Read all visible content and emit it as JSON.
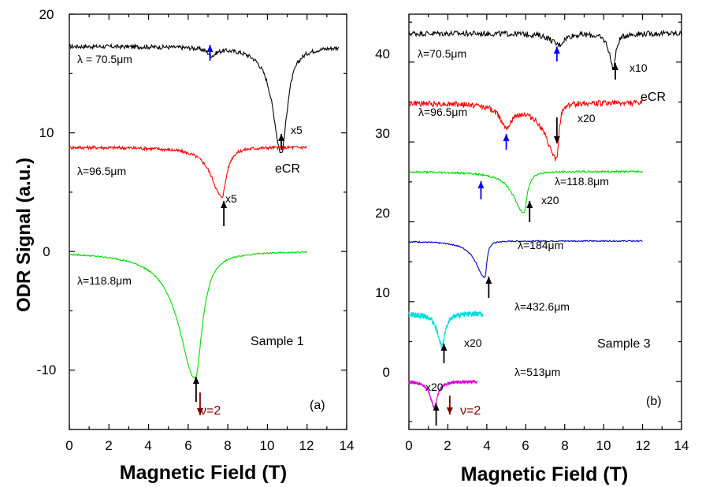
{
  "ylabel": "ODR Signal (a.u.)",
  "panel_a": {
    "label": "(a)",
    "xlabel": "Magnetic Field (T)",
    "sample": "Sample 1",
    "x_ticks": [
      "0",
      "2",
      "4",
      "6",
      "8",
      "10",
      "12",
      "14"
    ],
    "y_ticks": [
      "-10",
      "0",
      "10",
      "20"
    ],
    "annotations": {
      "l1": "λ = 70.5μm",
      "l2": "λ=96.5μm",
      "l3": "λ=118.8μm",
      "x5a": "x5",
      "x5b": "x5",
      "ecr": "eCR",
      "nu": "ν=2"
    }
  },
  "panel_b": {
    "label": "(b)",
    "xlabel": "Magnetic Field (T)",
    "sample": "Sample 3",
    "x_ticks": [
      "0",
      "2",
      "4",
      "6",
      "8",
      "10",
      "12",
      "14"
    ],
    "y_ticks": [
      "0",
      "10",
      "20",
      "30",
      "40"
    ],
    "annotations": {
      "l1": "λ=70.5μm",
      "l2": "λ=96.5μm",
      "l3": "λ=118.8μm",
      "l4": "λ=184μm",
      "l5": "λ=432.6μm",
      "l6": "λ=513μm",
      "x10": "x10",
      "x20a": "x20",
      "x20b": "x20",
      "x20c": "x20",
      "x20d": "x20",
      "ecr": "eCR",
      "nu": "ν=2"
    }
  },
  "chart_data": [
    {
      "type": "line",
      "panel": "(a)",
      "xlabel": "Magnetic Field (T)",
      "ylabel": "ODR Signal (a.u.)",
      "xlim": [
        0,
        14
      ],
      "ylim": [
        -15,
        20
      ],
      "series": [
        {
          "name": "λ = 70.5μm",
          "color": "#000000",
          "base": 17.3,
          "x_range": [
            0,
            13.6
          ],
          "dips": [
            {
              "x": 10.7,
              "depth": 9.0,
              "wl": 0.65,
              "wr": 0.45
            },
            {
              "x": 7.2,
              "depth": 0.6,
              "wl": 0.35,
              "wr": 0.35
            }
          ],
          "noise": 0.18
        },
        {
          "name": "λ=96.5μm",
          "color": "#ff0000",
          "base": 8.8,
          "x_range": [
            0,
            12
          ],
          "dips": [
            {
              "x": 7.7,
              "depth": 4.2,
              "wl": 0.8,
              "wr": 0.35
            }
          ],
          "noise": 0.14
        },
        {
          "name": "λ=118.8μm",
          "color": "#00dd00",
          "base": 0.0,
          "x_range": [
            0,
            12
          ],
          "dips": [
            {
              "x": 6.35,
              "depth": 10.7,
              "wl": 1.25,
              "wr": 0.55
            }
          ],
          "noise": 0.06
        }
      ],
      "arrows": [
        {
          "x": 10.7,
          "color": "#000000",
          "dir": "up"
        },
        {
          "x": 7.8,
          "color": "#000000",
          "dir": "up"
        },
        {
          "x": 6.4,
          "color": "#000000",
          "dir": "up"
        },
        {
          "x": 7.1,
          "color": "#0000ff",
          "dir": "up"
        },
        {
          "x": 6.6,
          "color": "#800000",
          "dir": "down"
        }
      ]
    },
    {
      "type": "line",
      "panel": "(b)",
      "xlabel": "Magnetic Field (T)",
      "xlim": [
        0,
        14
      ],
      "ylim": [
        -6,
        46
      ],
      "series": [
        {
          "name": "λ=70.5μm",
          "color": "#000000",
          "base": 43.6,
          "x_range": [
            0,
            14
          ],
          "dips": [
            {
              "x": 10.5,
              "depth": 4.3,
              "wl": 0.3,
              "wr": 0.2
            },
            {
              "x": 7.7,
              "depth": 1.4,
              "wl": 0.6,
              "wr": 0.4
            }
          ],
          "noise": 0.35
        },
        {
          "name": "λ=96.5μm",
          "color": "#ff0000",
          "base": 34.9,
          "x_range": [
            0,
            12
          ],
          "dips": [
            {
              "x": 7.6,
              "depth": 7.0,
              "wl": 0.9,
              "wr": 0.15
            },
            {
              "x": 5.0,
              "depth": 2.5,
              "wl": 0.5,
              "wr": 0.5
            }
          ],
          "noise": 0.35
        },
        {
          "name": "λ=118.8μm",
          "color": "#00dd00",
          "base": 26.3,
          "x_range": [
            0,
            12
          ],
          "dips": [
            {
              "x": 5.9,
              "depth": 5.2,
              "wl": 0.8,
              "wr": 0.25
            }
          ],
          "noise": 0.12
        },
        {
          "name": "λ=184μm",
          "color": "#0000cc",
          "base": 17.6,
          "x_range": [
            0,
            12
          ],
          "dips": [
            {
              "x": 3.9,
              "depth": 4.6,
              "wl": 0.7,
              "wr": 0.15
            }
          ],
          "noise": 0.08
        },
        {
          "name": "λ=432.6μm",
          "color": "#00dddd",
          "base": 8.5,
          "x_range": [
            0,
            3.8
          ],
          "dips": [
            {
              "x": 1.7,
              "depth": 4.0,
              "wl": 0.35,
              "wr": 0.25
            }
          ],
          "noise": 0.35
        },
        {
          "name": "λ=513μm",
          "color": "#dd00dd",
          "base": 0.0,
          "x_range": [
            0,
            3.5
          ],
          "dips": [
            {
              "x": 1.3,
              "depth": 3.2,
              "wl": 0.3,
              "wr": 0.25
            }
          ],
          "noise": 0.2
        }
      ],
      "arrows": [
        {
          "x": 10.6,
          "color": "#000000",
          "dir": "up"
        },
        {
          "x": 7.6,
          "color": "#0000ff",
          "dir": "up"
        },
        {
          "x": 7.6,
          "color": "#000000",
          "dir": "down"
        },
        {
          "x": 5.0,
          "color": "#0000ff",
          "dir": "up"
        },
        {
          "x": 3.7,
          "color": "#0000ff",
          "dir": "up"
        },
        {
          "x": 6.2,
          "color": "#000000",
          "dir": "up"
        },
        {
          "x": 4.1,
          "color": "#000000",
          "dir": "up"
        },
        {
          "x": 1.8,
          "color": "#000000",
          "dir": "up"
        },
        {
          "x": 1.4,
          "color": "#000000",
          "dir": "up"
        },
        {
          "x": 2.1,
          "color": "#800000",
          "dir": "down"
        }
      ]
    }
  ]
}
